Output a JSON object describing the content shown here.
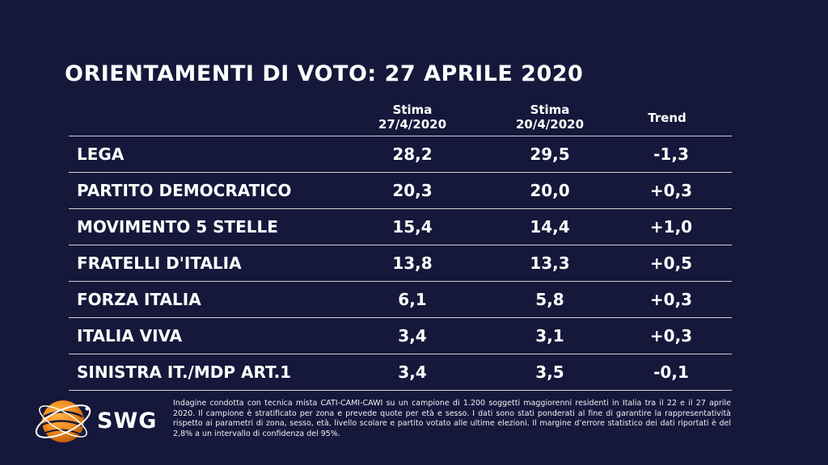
{
  "title": "ORIENTAMENTI DI VOTO: 27 APRILE 2020",
  "chart_data": {
    "type": "table",
    "columns": [
      {
        "line1": "Stima",
        "line2": "27/4/2020"
      },
      {
        "line1": "Stima",
        "line2": "20/4/2020"
      },
      {
        "line1": "Trend",
        "line2": ""
      }
    ],
    "rows": [
      {
        "party": "LEGA",
        "v1": "28,2",
        "v2": "29,5",
        "trend": "-1,3"
      },
      {
        "party": "PARTITO DEMOCRATICO",
        "v1": "20,3",
        "v2": "20,0",
        "trend": "+0,3"
      },
      {
        "party": "MOVIMENTO 5 STELLE",
        "v1": "15,4",
        "v2": "14,4",
        "trend": "+1,0"
      },
      {
        "party": "FRATELLI D'ITALIA",
        "v1": "13,8",
        "v2": "13,3",
        "trend": "+0,5"
      },
      {
        "party": "FORZA ITALIA",
        "v1": "6,1",
        "v2": "5,8",
        "trend": "+0,3"
      },
      {
        "party": "ITALIA VIVA",
        "v1": "3,4",
        "v2": "3,1",
        "trend": "+0,3"
      },
      {
        "party": "SINISTRA IT./MDP ART.1",
        "v1": "3,4",
        "v2": "3,5",
        "trend": "-0,1"
      }
    ]
  },
  "logo": {
    "text": "SWG",
    "icon": "swg-globe-logo",
    "color": "#f08a1c"
  },
  "footnote": "Indagine condotta con tecnica mista CATI-CAMI-CAWI su un campione di 1.200 soggetti maggiorenni residenti in Italia tra il 22 e il 27 aprile 2020. Il campione è stratificato per zona e prevede quote per età e sesso. I dati sono stati ponderati al fine di garantire la rappresentatività rispetto ai parametri di zona, sesso, età, livello scolare e partito votato alle ultime elezioni. Il margine d’errore statistico dei dati riportati è del 2,8% a un intervallo di confidenza del 95%.",
  "colors": {
    "background": "#15183a",
    "text": "#ffffff",
    "rule": "#d0d0d8"
  }
}
